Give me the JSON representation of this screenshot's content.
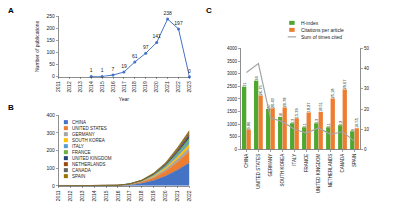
{
  "chart_data": [
    {
      "type": "line",
      "annotations": [
        "A"
      ],
      "xlabel": "Year",
      "ylabel": "Number of publications",
      "x": [
        2011,
        2012,
        2013,
        2014,
        2015,
        2016,
        2017,
        2018,
        2019,
        2020,
        2021,
        2022,
        2023
      ],
      "values": [
        null,
        null,
        null,
        1,
        1,
        7,
        19,
        61,
        97,
        141,
        238,
        197,
        0
      ],
      "color": "#4472c4",
      "marker": "circle",
      "data_labels": true,
      "xlim": [
        2011,
        2023
      ],
      "xticks": [
        2011,
        2012,
        2013,
        2014,
        2015,
        2016,
        2017,
        2018,
        2019,
        2020,
        2021,
        2022,
        2023
      ],
      "ylim": [
        0,
        250
      ],
      "yticks": [
        0,
        50,
        100,
        150,
        200,
        250
      ],
      "grid": false
    },
    {
      "type": "area",
      "stacked": true,
      "annotations": [
        "B"
      ],
      "legend": "upper left",
      "x": [
        2011,
        2012,
        2013,
        2014,
        2015,
        2016,
        2017,
        2018,
        2019,
        2020,
        2021,
        2022
      ],
      "series": [
        {
          "name": "CHINA",
          "color": "#4472c4",
          "values": [
            0,
            0,
            0,
            0,
            1,
            2,
            5,
            14,
            30,
            55,
            90,
            130
          ]
        },
        {
          "name": "UNITED STATES",
          "color": "#ed7d31",
          "values": [
            0,
            0,
            0,
            0,
            0,
            1,
            3,
            7,
            15,
            28,
            45,
            65
          ]
        },
        {
          "name": "GERMANY",
          "color": "#a5a5a5",
          "values": [
            0,
            0,
            0,
            0,
            0,
            0,
            1,
            3,
            6,
            10,
            16,
            22
          ]
        },
        {
          "name": "SOUTH KOREA",
          "color": "#ffc000",
          "values": [
            0,
            0,
            0,
            0,
            0,
            0,
            1,
            2,
            5,
            9,
            14,
            20
          ]
        },
        {
          "name": "ITALY",
          "color": "#5b9bd5",
          "values": [
            0,
            0,
            0,
            0,
            0,
            0,
            1,
            2,
            4,
            7,
            12,
            18
          ]
        },
        {
          "name": "FRANCE",
          "color": "#70ad47",
          "values": [
            0,
            0,
            0,
            0,
            0,
            0,
            0,
            1,
            3,
            6,
            10,
            15
          ]
        },
        {
          "name": "UNITED KINGDOM",
          "color": "#264478",
          "values": [
            0,
            0,
            0,
            0,
            0,
            0,
            0,
            1,
            3,
            5,
            9,
            14
          ]
        },
        {
          "name": "NETHERLANDS",
          "color": "#9e480e",
          "values": [
            0,
            0,
            0,
            0,
            0,
            0,
            0,
            1,
            2,
            4,
            7,
            11
          ]
        },
        {
          "name": "CANADA",
          "color": "#636363",
          "values": [
            0,
            0,
            0,
            0,
            0,
            0,
            0,
            1,
            2,
            4,
            7,
            10
          ]
        },
        {
          "name": "SPAIN",
          "color": "#997300",
          "values": [
            0,
            0,
            0,
            0,
            0,
            0,
            0,
            1,
            2,
            3,
            6,
            9
          ]
        }
      ],
      "xlim": [
        2011,
        2022
      ],
      "xticks": [
        2011,
        2012,
        2013,
        2014,
        2015,
        2016,
        2017,
        2018,
        2019,
        2020,
        2021,
        2022
      ],
      "ylim": [
        0,
        400
      ],
      "yticks": [
        0,
        100,
        200,
        300,
        400
      ],
      "grid": false
    },
    {
      "type": "bar",
      "annotations": [
        "C"
      ],
      "legend": "top right",
      "categories": [
        "CHINA",
        "UNITED STATES",
        "GERMANY",
        "SOUTH KOREA",
        "ITALY",
        "FRANCE",
        "UNITED KINGDOM",
        "NETHERLANDS",
        "CANADA",
        "SPAIN"
      ],
      "series": [
        {
          "name": "H-index",
          "type": "bar",
          "axis": "y2",
          "color": "#4ea72e",
          "data_labels": true,
          "values": [
            31,
            34,
            20,
            16,
            13,
            11,
            13,
            11,
            12,
            9
          ]
        },
        {
          "name": "Citations per article",
          "type": "bar",
          "axis": "y2",
          "color": "#ed7d31",
          "data_labels": true,
          "values": [
            9.86,
            26.75,
            20.43,
            20.78,
            15.39,
            18.27,
            18.51,
            25.18,
            29.67,
            10.55
          ]
        },
        {
          "name": "Sum of times cited",
          "type": "line",
          "color": "#a5a5a5",
          "line_style": "solid",
          "values": [
            3050,
            3400,
            1250,
            1100,
            800,
            650,
            850,
            600,
            700,
            330
          ]
        }
      ],
      "ylim": [
        0,
        4000
      ],
      "yticks": [
        0,
        500,
        1000,
        1500,
        2000,
        2500,
        3000,
        3500,
        4000
      ],
      "y2lim": [
        0,
        50
      ],
      "y2ticks": [
        0,
        10,
        20,
        30,
        40,
        50
      ],
      "grid": false
    }
  ]
}
